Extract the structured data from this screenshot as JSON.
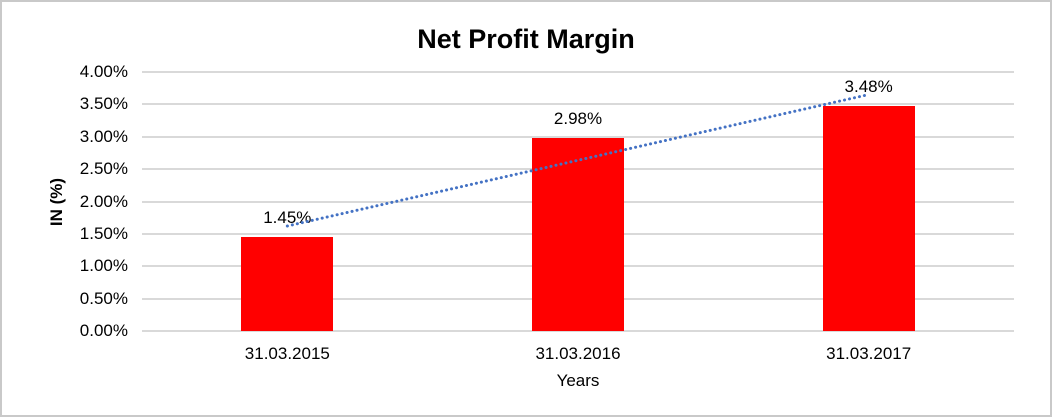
{
  "chart_data": {
    "type": "bar",
    "title": "Net Profit Margin",
    "categories": [
      "31.03.2015",
      "31.03.2016",
      "31.03.2017"
    ],
    "series": [
      {
        "name": "Net Profit Margin",
        "color": "#FF0000",
        "values": [
          1.45,
          2.98,
          3.48
        ]
      }
    ],
    "data_labels": [
      "1.45%",
      "2.98%",
      "3.48%"
    ],
    "xlabel": "Years",
    "ylabel": "IN (%)",
    "ylim": [
      0,
      4
    ],
    "ytick_step": 0.5,
    "ytick_labels": [
      "0.00%",
      "0.50%",
      "1.00%",
      "1.50%",
      "2.00%",
      "2.50%",
      "3.00%",
      "3.50%",
      "4.00%"
    ],
    "grid": true,
    "gridline_color": "#D9D9D9",
    "legend": "none",
    "trendline": {
      "type": "linear",
      "style": "dotted",
      "color": "#4472C4"
    }
  }
}
